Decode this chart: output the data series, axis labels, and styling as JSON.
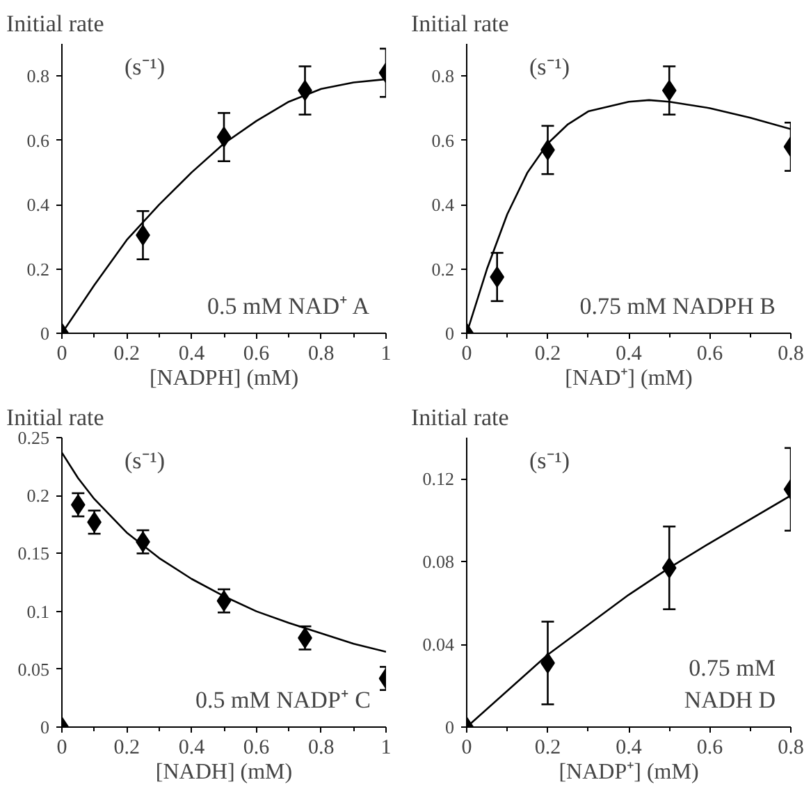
{
  "chart_data": [
    {
      "type": "scatter",
      "ylabel": "Initial rate",
      "xlabel": "[NADPH] (mM)",
      "annotations": [
        "(s⁻¹)",
        "0.5 mM NAD⁺ A"
      ],
      "xlim": [
        0,
        1
      ],
      "ylim": [
        0,
        0.9
      ],
      "xticks": [
        0,
        {
          "value": 0.1,
          "label": null
        },
        0.2,
        {
          "value": 0.3,
          "label": null
        },
        0.4,
        {
          "value": 0.5,
          "label": null
        },
        0.6,
        {
          "value": 0.7,
          "label": null
        },
        0.8,
        {
          "value": 0.9,
          "label": null
        },
        1
      ],
      "yticks": [
        0,
        0.2,
        0.4,
        0.6,
        0.8
      ],
      "series": [
        {
          "marker": "diamond",
          "color": "#000000",
          "x": [
            0,
            0.25,
            0.5,
            0.75,
            1
          ],
          "values": [
            0,
            0.305,
            0.61,
            0.755,
            0.81
          ],
          "errors": [
            null,
            0.075,
            0.075,
            0.075,
            0.075
          ]
        },
        {
          "type": "line",
          "color": "#000000",
          "x": [
            0,
            0.1,
            0.2,
            0.3,
            0.4,
            0.5,
            0.6,
            0.7,
            0.8,
            0.9,
            1
          ],
          "values": [
            0,
            0.15,
            0.29,
            0.4,
            0.5,
            0.59,
            0.66,
            0.72,
            0.76,
            0.78,
            0.79
          ]
        }
      ]
    },
    {
      "type": "scatter",
      "ylabel": "Initial rate",
      "xlabel": "[NAD⁺] (mM)",
      "annotations": [
        "(s⁻¹)",
        "0.75 mM NADPH B"
      ],
      "xlim": [
        0,
        0.8
      ],
      "ylim": [
        0,
        0.9
      ],
      "xticks": [
        0,
        {
          "value": 0.1,
          "label": null
        },
        0.2,
        {
          "value": 0.3,
          "label": null
        },
        0.4,
        {
          "value": 0.5,
          "label": null
        },
        0.6,
        {
          "value": 0.7,
          "label": null
        },
        0.8
      ],
      "yticks": [
        0,
        0.2,
        0.4,
        0.6,
        0.8
      ],
      "series": [
        {
          "marker": "diamond",
          "color": "#000000",
          "x": [
            0,
            0.075,
            0.2,
            0.5,
            0.8
          ],
          "values": [
            0,
            0.175,
            0.57,
            0.755,
            0.58
          ],
          "errors": [
            null,
            0.075,
            0.075,
            0.075,
            0.075
          ]
        },
        {
          "type": "line",
          "color": "#000000",
          "x": [
            0,
            0.05,
            0.1,
            0.15,
            0.2,
            0.25,
            0.3,
            0.4,
            0.45,
            0.5,
            0.6,
            0.7,
            0.8
          ],
          "values": [
            0,
            0.2,
            0.37,
            0.5,
            0.59,
            0.65,
            0.69,
            0.72,
            0.725,
            0.72,
            0.7,
            0.67,
            0.635
          ]
        }
      ]
    },
    {
      "type": "scatter",
      "ylabel": "Initial rate",
      "xlabel": "[NADH] (mM)",
      "annotations": [
        "(s⁻¹)",
        "0.5 mM NADP⁺ C"
      ],
      "xlim": [
        0,
        1
      ],
      "ylim": [
        0,
        0.25
      ],
      "xticks": [
        0,
        {
          "value": 0.1,
          "label": null
        },
        0.2,
        {
          "value": 0.3,
          "label": null
        },
        0.4,
        {
          "value": 0.5,
          "label": null
        },
        0.6,
        {
          "value": 0.7,
          "label": null
        },
        0.8,
        {
          "value": 0.9,
          "label": null
        },
        1
      ],
      "yticks": [
        0,
        0.05,
        0.1,
        0.15,
        0.2,
        0.25
      ],
      "series": [
        {
          "marker": "diamond",
          "color": "#000000",
          "x": [
            0,
            0.05,
            0.1,
            0.25,
            0.5,
            0.75,
            1
          ],
          "values": [
            0,
            0.192,
            0.177,
            0.16,
            0.109,
            0.077,
            0.042
          ],
          "errors": [
            null,
            0.01,
            0.01,
            0.01,
            0.01,
            0.01,
            0.01
          ]
        },
        {
          "type": "line",
          "color": "#000000",
          "x": [
            0,
            0.05,
            0.1,
            0.2,
            0.3,
            0.4,
            0.5,
            0.6,
            0.7,
            0.8,
            0.9,
            1
          ],
          "values": [
            0.237,
            0.215,
            0.197,
            0.168,
            0.146,
            0.128,
            0.113,
            0.1,
            0.09,
            0.081,
            0.072,
            0.065
          ]
        }
      ]
    },
    {
      "type": "scatter",
      "ylabel": "Initial rate",
      "xlabel": "[NADP⁺] (mM)",
      "annotations": [
        "(s⁻¹)",
        "0.75 mM\nNADH D"
      ],
      "xlim": [
        0,
        0.8
      ],
      "ylim": [
        0,
        0.14
      ],
      "xticks": [
        0,
        {
          "value": 0.1,
          "label": null
        },
        0.2,
        {
          "value": 0.3,
          "label": null
        },
        0.4,
        {
          "value": 0.5,
          "label": null
        },
        0.6,
        {
          "value": 0.7,
          "label": null
        },
        0.8
      ],
      "yticks": [
        0,
        0.04,
        0.08,
        0.12
      ],
      "series": [
        {
          "marker": "diamond",
          "color": "#000000",
          "x": [
            0,
            0.2,
            0.5,
            0.8
          ],
          "values": [
            0,
            0.031,
            0.077,
            0.115
          ],
          "errors": [
            null,
            0.02,
            0.02,
            0.02
          ]
        },
        {
          "type": "line",
          "color": "#000000",
          "x": [
            0,
            0.2,
            0.4,
            0.5,
            0.6,
            0.8
          ],
          "values": [
            0,
            0.035,
            0.064,
            0.077,
            0.089,
            0.112
          ]
        }
      ]
    }
  ]
}
